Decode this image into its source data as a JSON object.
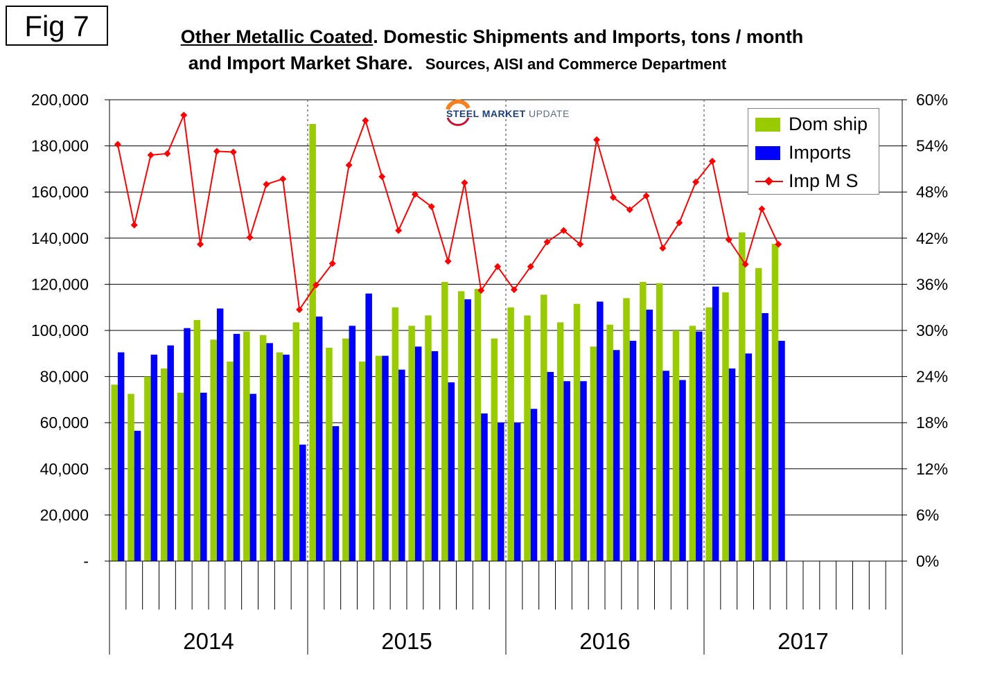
{
  "figure_label": "Fig 7",
  "title": {
    "underlined": "Other Metallic Coated",
    "line1_rest": ". Domestic Shipments and Imports, tons / month",
    "line2": "and Import Market Share.",
    "sources": "Sources, AISI and Commerce Department"
  },
  "logo": {
    "brand_bold": "STEEL MARKET",
    "brand_thin": "UPDATE"
  },
  "colors": {
    "dom": "#99cc00",
    "imports": "#0000ff",
    "ims": "#ff0000"
  },
  "chart_data": {
    "type": "bar",
    "title": "Other Metallic Coated. Domestic Shipments and Imports, tons / month and Import Market Share.",
    "y_left": {
      "min": 0,
      "max": 200000,
      "step": 20000,
      "tick_labels": [
        "-",
        "20,000",
        "40,000",
        "60,000",
        "80,000",
        "100,000",
        "120,000",
        "140,000",
        "160,000",
        "180,000",
        "200,000"
      ]
    },
    "y_right": {
      "min": 0,
      "max": 60,
      "step": 6,
      "tick_labels": [
        "0%",
        "6%",
        "12%",
        "18%",
        "24%",
        "30%",
        "36%",
        "42%",
        "48%",
        "54%",
        "60%"
      ]
    },
    "years": [
      "2014",
      "2015",
      "2016",
      "2017"
    ],
    "months_per_year": 12,
    "grid": true,
    "legend_position": "top-right",
    "series": [
      {
        "name": "Dom ship",
        "kind": "bar",
        "axis": "left",
        "values": [
          76500,
          72500,
          80000,
          83500,
          73000,
          104500,
          96000,
          86500,
          99500,
          98000,
          90500,
          103500,
          189500,
          92500,
          96500,
          86500,
          89000,
          110000,
          102000,
          106500,
          121000,
          117000,
          118000,
          96500,
          110000,
          106500,
          115500,
          103500,
          111500,
          93000,
          102500,
          114000,
          121000,
          120500,
          100000,
          102000,
          110000,
          116500,
          142500,
          127000,
          137500
        ]
      },
      {
        "name": "Imports",
        "kind": "bar",
        "axis": "left",
        "values": [
          90500,
          56500,
          89500,
          93500,
          101000,
          73000,
          109500,
          98500,
          72500,
          94500,
          89500,
          50500,
          106000,
          58500,
          102000,
          116000,
          89000,
          83000,
          93000,
          91000,
          77500,
          113500,
          64000,
          60000,
          60000,
          66000,
          82000,
          78000,
          78000,
          112500,
          91500,
          95500,
          109000,
          82500,
          78500,
          99500,
          119000,
          83500,
          90000,
          107500,
          95500
        ]
      },
      {
        "name": "Imp M S",
        "kind": "line",
        "axis": "right",
        "values": [
          54.2,
          43.7,
          52.8,
          53.0,
          58.0,
          41.2,
          53.3,
          53.2,
          42.1,
          49.0,
          49.7,
          32.7,
          35.9,
          38.7,
          51.5,
          57.3,
          50.0,
          43.0,
          47.7,
          46.1,
          39.0,
          49.2,
          35.2,
          38.3,
          35.3,
          38.3,
          41.5,
          43.0,
          41.2,
          54.8,
          47.3,
          45.7,
          47.5,
          40.7,
          44.0,
          49.3,
          52.0,
          41.8,
          38.6,
          45.8,
          41.2
        ]
      }
    ]
  }
}
